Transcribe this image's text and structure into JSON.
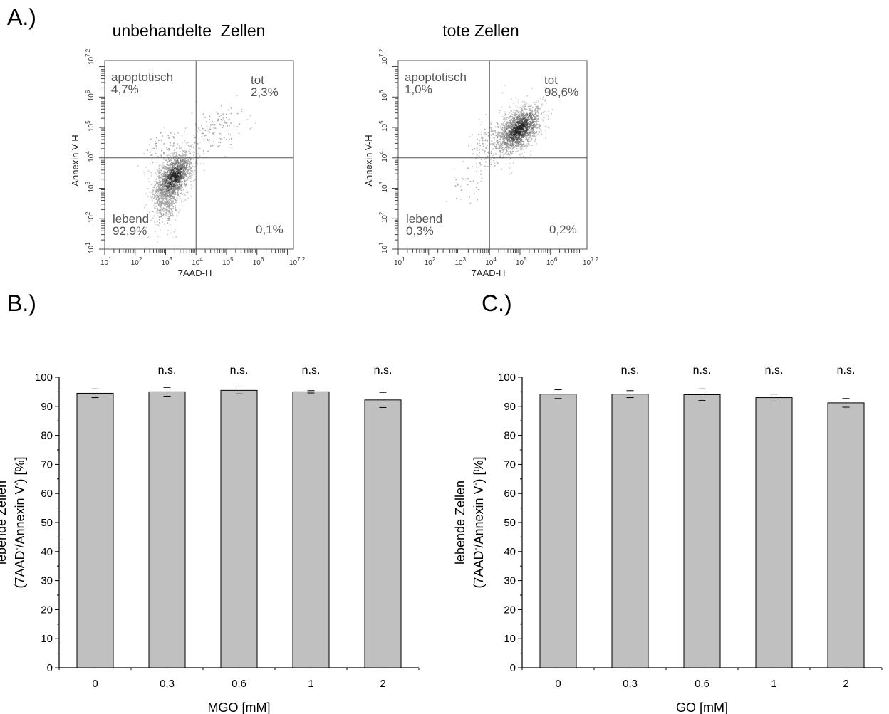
{
  "panels": {
    "a": "A.)",
    "b": "B.)",
    "c": "C.)"
  },
  "flow": [
    {
      "title": "unbehandelte  Zellen",
      "ylabel": "Annexin V-H",
      "xlabel": "7AAD-H",
      "ticks": [
        "10",
        "10",
        "10",
        "10",
        "10",
        "10",
        "10"
      ],
      "tick_exponents": [
        "1",
        "2",
        "3",
        "4",
        "5",
        "6",
        "7.2"
      ],
      "quadrants": {
        "ul": {
          "name": "apoptotisch",
          "value": "4,7%"
        },
        "ur": {
          "name": "tot",
          "value": "2,3%"
        },
        "ll": {
          "name": "lebend",
          "value": "92,9%"
        },
        "lr": {
          "name": "",
          "value": "0,1%"
        }
      },
      "clusters": [
        {
          "x": 3.25,
          "y": 3.35,
          "sx": 0.32,
          "sy": 0.45,
          "n": 1400,
          "rho": 0.55
        },
        {
          "x": 3.0,
          "y": 2.7,
          "sx": 0.25,
          "sy": 0.45,
          "n": 400,
          "rho": 0.2
        },
        {
          "x": 4.7,
          "y": 5.0,
          "sx": 0.45,
          "sy": 0.4,
          "n": 130,
          "rho": 0.3
        },
        {
          "x": 2.9,
          "y": 4.2,
          "sx": 0.3,
          "sy": 0.4,
          "n": 90,
          "rho": 0.1
        }
      ],
      "seed": 7
    },
    {
      "title": "tote Zellen",
      "ylabel": "Annexin V-H",
      "xlabel": "7AAD-H",
      "ticks": [
        "10",
        "10",
        "10",
        "10",
        "10",
        "10",
        "10"
      ],
      "tick_exponents": [
        "1",
        "2",
        "3",
        "4",
        "5",
        "6",
        "7.2"
      ],
      "quadrants": {
        "ul": {
          "name": "apoptotisch",
          "value": "1,0%"
        },
        "ur": {
          "name": "tot",
          "value": "98,6%"
        },
        "ll": {
          "name": "lebend",
          "value": "0,3%"
        },
        "lr": {
          "name": "",
          "value": "0,2%"
        }
      },
      "clusters": [
        {
          "x": 4.95,
          "y": 4.95,
          "sx": 0.38,
          "sy": 0.4,
          "n": 1500,
          "rho": 0.55
        },
        {
          "x": 4.3,
          "y": 4.6,
          "sx": 0.45,
          "sy": 0.45,
          "n": 250,
          "rho": 0.3
        },
        {
          "x": 3.3,
          "y": 3.2,
          "sx": 0.3,
          "sy": 0.4,
          "n": 35,
          "rho": 0.2
        }
      ],
      "seed": 13
    }
  ],
  "chart_data": [
    {
      "type": "bar",
      "panel": "B.)",
      "categories": [
        "0",
        "0,3",
        "0,6",
        "1",
        "2"
      ],
      "values": [
        94.5,
        95.0,
        95.5,
        95.0,
        92.2
      ],
      "errors": [
        1.5,
        1.5,
        1.2,
        0.4,
        2.6
      ],
      "annotations": [
        "",
        "n.s.",
        "n.s.",
        "n.s.",
        "n.s."
      ],
      "xlabel": "MGO [mM]",
      "ylabel_line1": "lebende Zellen",
      "ylabel_line2": "(7AAD",
      "ylabel_sup1": "-",
      "ylabel_line2b": "/Annexin V",
      "ylabel_sup2": "-",
      "ylabel_line2c": ") [%]",
      "ylim": [
        0,
        100
      ],
      "yticks": [
        0,
        10,
        20,
        30,
        40,
        50,
        60,
        70,
        80,
        90,
        100
      ],
      "bar_color": "#c0c0c0"
    },
    {
      "type": "bar",
      "panel": "C.)",
      "categories": [
        "0",
        "0,3",
        "0,6",
        "1",
        "2"
      ],
      "values": [
        94.2,
        94.2,
        94.0,
        93.0,
        91.2
      ],
      "errors": [
        1.5,
        1.2,
        2.0,
        1.2,
        1.5
      ],
      "annotations": [
        "",
        "n.s.",
        "n.s.",
        "n.s.",
        "n.s."
      ],
      "xlabel": "GO [mM]",
      "ylabel_line1": "lebende Zellen",
      "ylabel_line2": "(7AAD",
      "ylabel_sup1": "-",
      "ylabel_line2b": "/Annexin V",
      "ylabel_sup2": "-",
      "ylabel_line2c": ") [%]",
      "ylim": [
        0,
        100
      ],
      "yticks": [
        0,
        10,
        20,
        30,
        40,
        50,
        60,
        70,
        80,
        90,
        100
      ],
      "bar_color": "#c0c0c0"
    }
  ]
}
